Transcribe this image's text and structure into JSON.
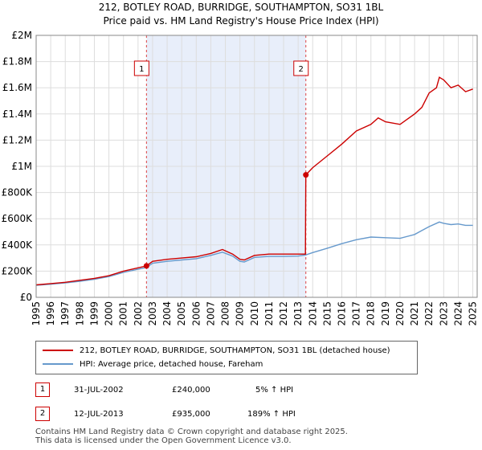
{
  "chart_data": {
    "type": "line",
    "title": "212, BOTLEY ROAD, BURRIDGE, SOUTHAMPTON, SO31 1BL",
    "subtitle": "Price paid vs. HM Land Registry's House Price Index (HPI)",
    "xlim": [
      1995,
      2025.3
    ],
    "ylim": [
      0,
      2000000
    ],
    "x_ticks": [
      "1995",
      "1996",
      "1997",
      "1998",
      "1999",
      "2000",
      "2001",
      "2002",
      "2003",
      "2004",
      "2005",
      "2006",
      "2007",
      "2008",
      "2009",
      "2010",
      "2011",
      "2012",
      "2013",
      "2014",
      "2015",
      "2016",
      "2017",
      "2018",
      "2019",
      "2020",
      "2021",
      "2022",
      "2023",
      "2024",
      "2025"
    ],
    "y_ticks": [
      {
        "value": 0,
        "label": "£0"
      },
      {
        "value": 200000,
        "label": "£200K"
      },
      {
        "value": 400000,
        "label": "£400K"
      },
      {
        "value": 600000,
        "label": "£600K"
      },
      {
        "value": 800000,
        "label": "£800K"
      },
      {
        "value": 1000000,
        "label": "£1M"
      },
      {
        "value": 1200000,
        "label": "£1.2M"
      },
      {
        "value": 1400000,
        "label": "£1.4M"
      },
      {
        "value": 1600000,
        "label": "£1.6M"
      },
      {
        "value": 1800000,
        "label": "£1.8M"
      },
      {
        "value": 2000000,
        "label": "£2M"
      }
    ],
    "shaded_region": [
      2002.58,
      2013.53
    ],
    "series": [
      {
        "name": "212, BOTLEY ROAD, BURRIDGE, SOUTHAMPTON, SO31 1BL (detached house)",
        "color": "#cc0000",
        "x": [
          1995,
          1996,
          1997,
          1998,
          1999,
          2000,
          2001,
          2002,
          2002.58,
          2003,
          2004,
          2005,
          2006,
          2007,
          2007.8,
          2008.5,
          2009,
          2009.3,
          2010,
          2011,
          2012,
          2013,
          2013.5,
          2013.53,
          2014,
          2015,
          2016,
          2017,
          2018,
          2018.5,
          2019,
          2020,
          2021,
          2021.5,
          2022,
          2022.5,
          2022.7,
          2023,
          2023.5,
          2024,
          2024.5,
          2025
        ],
        "values": [
          95000,
          105000,
          115000,
          130000,
          145000,
          165000,
          200000,
          225000,
          240000,
          275000,
          290000,
          300000,
          310000,
          335000,
          365000,
          330000,
          290000,
          285000,
          320000,
          330000,
          330000,
          330000,
          330000,
          935000,
          990000,
          1080000,
          1170000,
          1270000,
          1320000,
          1370000,
          1340000,
          1320000,
          1400000,
          1450000,
          1560000,
          1600000,
          1680000,
          1660000,
          1600000,
          1620000,
          1570000,
          1590000
        ]
      },
      {
        "name": "HPI: Average price, detached house, Fareham",
        "color": "#6699cc",
        "x": [
          1995,
          1996,
          1997,
          1998,
          1999,
          2000,
          2001,
          2002,
          2002.58,
          2003,
          2004,
          2005,
          2006,
          2007,
          2007.8,
          2008.5,
          2009,
          2009.3,
          2010,
          2011,
          2012,
          2013,
          2013.53,
          2014,
          2015,
          2016,
          2017,
          2018,
          2019,
          2020,
          2021,
          2021.5,
          2022,
          2022.7,
          2023,
          2023.5,
          2024,
          2024.5,
          2025
        ],
        "values": [
          92000,
          100000,
          110000,
          123000,
          138000,
          158000,
          190000,
          214000,
          228000,
          260000,
          275000,
          285000,
          295000,
          320000,
          345000,
          315000,
          275000,
          270000,
          305000,
          312000,
          312000,
          315000,
          324000,
          342000,
          375000,
          410000,
          440000,
          460000,
          455000,
          450000,
          480000,
          510000,
          540000,
          575000,
          565000,
          555000,
          560000,
          550000,
          550000
        ]
      }
    ],
    "annotations": [
      {
        "label": "1",
        "x": 2002.58,
        "y": 240000
      },
      {
        "label": "2",
        "x": 2013.53,
        "y": 935000
      }
    ]
  },
  "legend": {
    "property_label": "212, BOTLEY ROAD, BURRIDGE, SOUTHAMPTON, SO31 1BL (detached house)",
    "hpi_label": "HPI: Average price, detached house, Fareham"
  },
  "transactions": [
    {
      "num": "1",
      "date": "31-JUL-2002",
      "price": "£240,000",
      "hpi": "5% ↑ HPI"
    },
    {
      "num": "2",
      "date": "12-JUL-2013",
      "price": "£935,000",
      "hpi": "189% ↑ HPI"
    }
  ],
  "footer": {
    "line1": "Contains HM Land Registry data © Crown copyright and database right 2025.",
    "line2": "This data is licensed under the Open Government Licence v3.0."
  },
  "colors": {
    "property_line": "#cc0000",
    "hpi_line": "#6699cc",
    "shade": "#e8eefa",
    "grid": "#dddddd",
    "marker_border": "#cc0000"
  }
}
